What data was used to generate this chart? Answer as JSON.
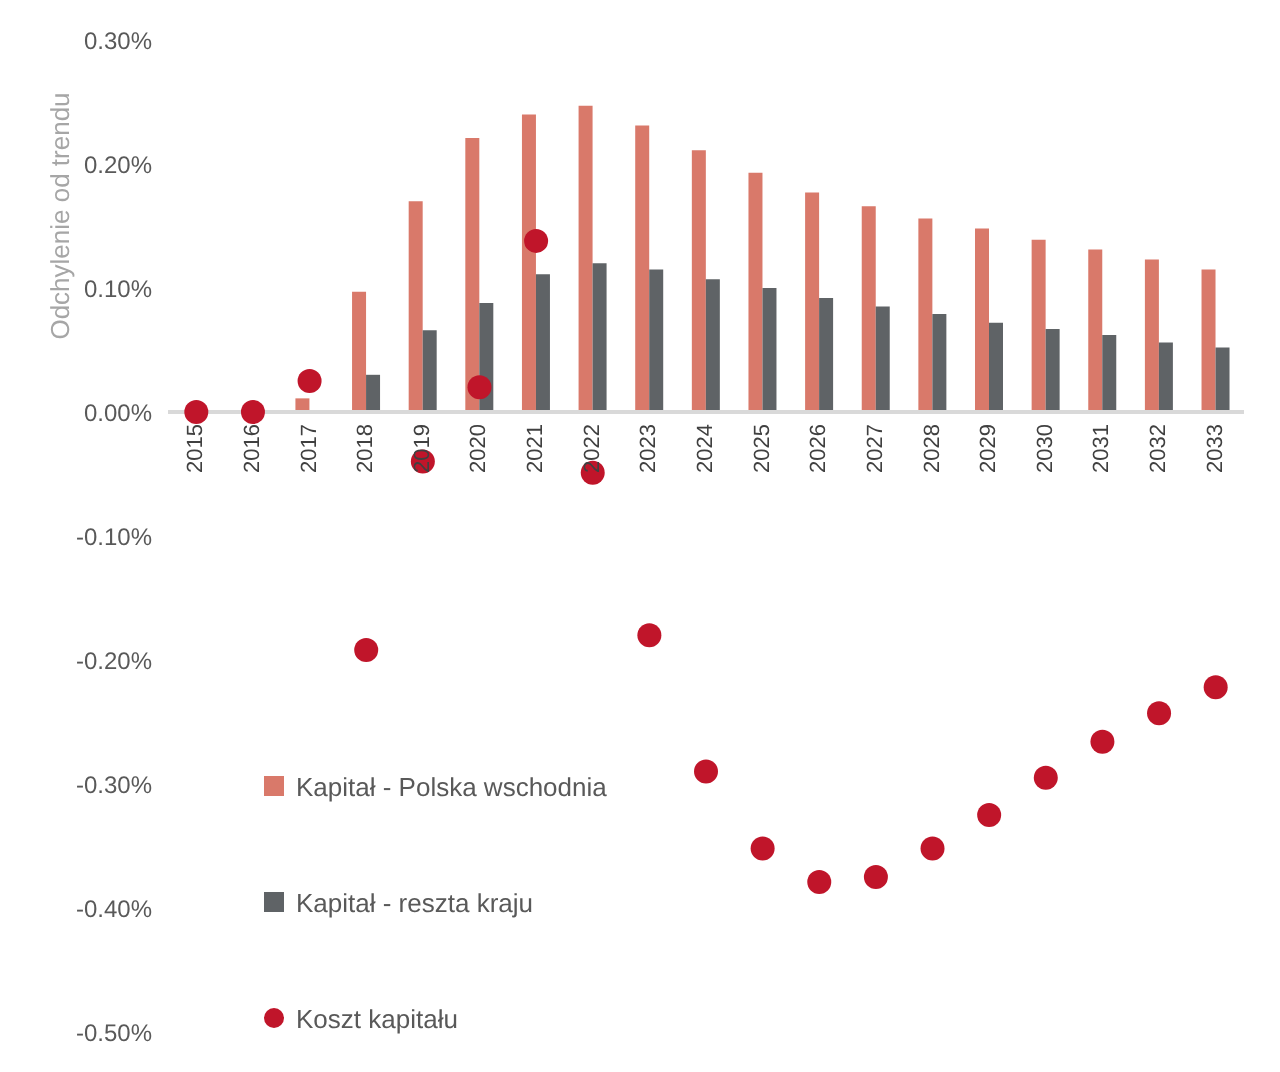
{
  "chart_data": {
    "type": "bar",
    "ylabel": "Odchylenie od trendu",
    "categories": [
      "2015",
      "2016",
      "2017",
      "2018",
      "2019",
      "2020",
      "2021",
      "2022",
      "2023",
      "2024",
      "2025",
      "2026",
      "2027",
      "2028",
      "2029",
      "2030",
      "2031",
      "2032",
      "2033"
    ],
    "series": [
      {
        "name": "Kapitał - Polska wschodnia",
        "color": "#d9796a",
        "values": [
          0,
          0,
          0.011,
          0.097,
          0.17,
          0.221,
          0.24,
          0.247,
          0.231,
          0.211,
          0.193,
          0.177,
          0.166,
          0.156,
          0.148,
          0.139,
          0.131,
          0.123,
          0.115
        ]
      },
      {
        "name": "Kapitał - reszta kraju",
        "color": "#5f6366",
        "values": [
          0,
          0,
          0,
          0.03,
          0.066,
          0.088,
          0.111,
          0.12,
          0.115,
          0.107,
          0.1,
          0.092,
          0.085,
          0.079,
          0.072,
          0.067,
          0.062,
          0.056,
          0.052
        ]
      },
      {
        "name": "Koszt kapitału",
        "type": "scatter",
        "color": "#c0152a",
        "values": [
          0,
          0,
          0.025,
          -0.192,
          -0.04,
          0.02,
          0.138,
          -0.049,
          -0.18,
          -0.29,
          -0.352,
          -0.379,
          -0.375,
          -0.352,
          -0.325,
          -0.295,
          -0.266,
          -0.243,
          -0.222
        ]
      }
    ],
    "ylim": [
      -0.5,
      0.3
    ],
    "yticks": [
      {
        "value": -0.5,
        "label": "-0.50%"
      },
      {
        "value": -0.4,
        "label": "-0.40%"
      },
      {
        "value": -0.3,
        "label": "-0.30%"
      },
      {
        "value": -0.2,
        "label": "-0.20%"
      },
      {
        "value": -0.1,
        "label": "-0.10%"
      },
      {
        "value": 0,
        "label": "0.00%"
      },
      {
        "value": 0.1,
        "label": "0.10%"
      },
      {
        "value": 0.2,
        "label": "0.20%"
      },
      {
        "value": 0.3,
        "label": "0.30%"
      }
    ],
    "grid": false,
    "legend": "bottom left",
    "marker": "circle"
  }
}
